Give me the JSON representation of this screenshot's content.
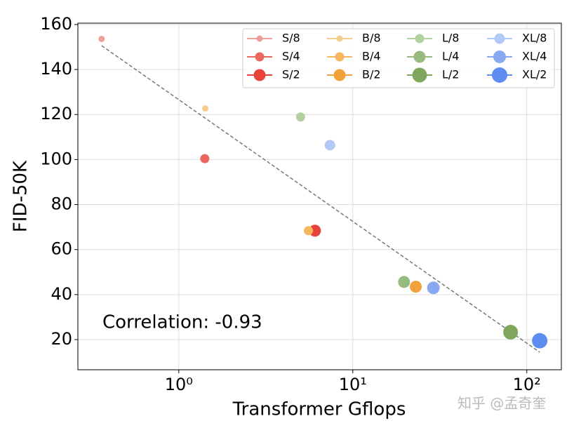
{
  "chart_data": {
    "type": "scatter",
    "x_label": "Transformer Gflops",
    "y_label": "FID-50K",
    "annotation": "Correlation: -0.93",
    "watermark": "知乎 @孟奇奎",
    "xscale": "log",
    "grid": true,
    "legend_position": "upper right",
    "xlim": [
      0.263,
      158
    ],
    "ylim": [
      6.6,
      160.6
    ],
    "xticks": [
      {
        "value": 1,
        "label": "10⁰"
      },
      {
        "value": 10,
        "label": "10¹"
      },
      {
        "value": 100,
        "label": "10²"
      }
    ],
    "yticks": [
      20,
      40,
      60,
      80,
      100,
      120,
      140,
      160
    ],
    "fit_line": {
      "x": [
        0.36,
        118.64
      ],
      "y": [
        150.6,
        14.4
      ],
      "color": "#777777"
    },
    "series": [
      {
        "name": "S/8",
        "color": "#f09e9a",
        "size": 4.5,
        "x": [
          0.36
        ],
        "values": [
          153.6
        ]
      },
      {
        "name": "S/4",
        "color": "#e8675f",
        "size": 6.5,
        "x": [
          1.41
        ],
        "values": [
          100.4
        ]
      },
      {
        "name": "S/2",
        "color": "#e8433b",
        "size": 8.5,
        "x": [
          6.06
        ],
        "values": [
          68.4
        ]
      },
      {
        "name": "B/8",
        "color": "#f7cd8c",
        "size": 4.5,
        "x": [
          1.42
        ],
        "values": [
          122.7
        ]
      },
      {
        "name": "B/4",
        "color": "#f5b65e",
        "size": 6.5,
        "x": [
          5.56
        ],
        "values": [
          68.4
        ]
      },
      {
        "name": "B/2",
        "color": "#f2a23a",
        "size": 8.5,
        "x": [
          23.01
        ],
        "values": [
          43.5
        ]
      },
      {
        "name": "L/8",
        "color": "#b3d0a2",
        "size": 6.5,
        "x": [
          5.01
        ],
        "values": [
          118.9
        ]
      },
      {
        "name": "L/4",
        "color": "#97ba7e",
        "size": 8.5,
        "x": [
          19.7
        ],
        "values": [
          45.6
        ]
      },
      {
        "name": "L/2",
        "color": "#7ea75d",
        "size": 10.5,
        "x": [
          80.71
        ],
        "values": [
          23.3
        ]
      },
      {
        "name": "XL/8",
        "color": "#b2c8f5",
        "size": 7.5,
        "x": [
          7.39
        ],
        "values": [
          106.4
        ]
      },
      {
        "name": "XL/4",
        "color": "#88a9f2",
        "size": 9,
        "x": [
          29.05
        ],
        "values": [
          43.0
        ]
      },
      {
        "name": "XL/2",
        "color": "#5e8df0",
        "size": 11,
        "x": [
          118.64
        ],
        "values": [
          19.5
        ]
      }
    ]
  }
}
